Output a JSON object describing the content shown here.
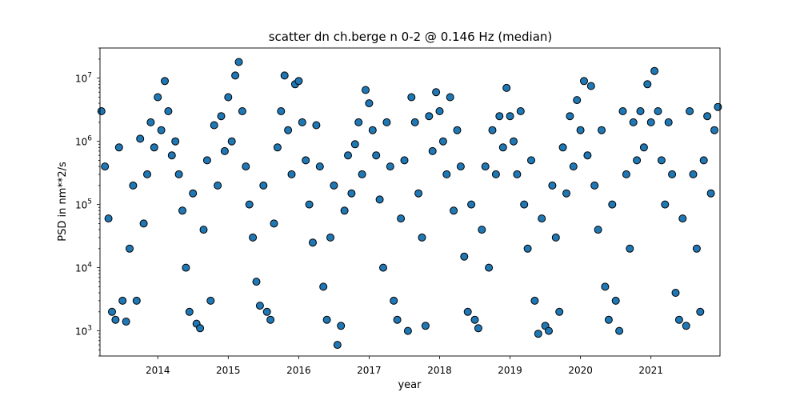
{
  "chart_data": {
    "type": "scatter",
    "title": "scatter dn ch.berge n 0-2 @ 0.146 Hz (median)",
    "xlabel": "year",
    "ylabel": "PSD in nm**2/s",
    "x_scale": "time",
    "y_scale": "log",
    "xlim": [
      2013.18,
      2021.98
    ],
    "ylim": [
      400,
      30000000
    ],
    "x_ticks": [
      {
        "value": 2014,
        "label": "2014"
      },
      {
        "value": 2015,
        "label": "2015"
      },
      {
        "value": 2016,
        "label": "2016"
      },
      {
        "value": 2017,
        "label": "2017"
      },
      {
        "value": 2018,
        "label": "2018"
      },
      {
        "value": 2019,
        "label": "2019"
      },
      {
        "value": 2020,
        "label": "2020"
      },
      {
        "value": 2021,
        "label": "2021"
      }
    ],
    "y_ticks": [
      {
        "value": 1000,
        "base": "10",
        "exp": "3"
      },
      {
        "value": 10000,
        "base": "10",
        "exp": "4"
      },
      {
        "value": 100000,
        "base": "10",
        "exp": "5"
      },
      {
        "value": 1000000,
        "base": "10",
        "exp": "6"
      },
      {
        "value": 10000000,
        "base": "10",
        "exp": "7"
      }
    ],
    "marker_color": "#1f77b4",
    "marker_edge_color": "#000000",
    "grid": false,
    "series": [
      {
        "points": [
          [
            2013.2,
            3000000
          ],
          [
            2013.25,
            400000
          ],
          [
            2013.3,
            60000
          ],
          [
            2013.35,
            2000
          ],
          [
            2013.4,
            1500
          ],
          [
            2013.45,
            800000
          ],
          [
            2013.5,
            3000
          ],
          [
            2013.55,
            1400
          ],
          [
            2013.6,
            20000
          ],
          [
            2013.65,
            200000
          ],
          [
            2013.7,
            3000
          ],
          [
            2013.75,
            1100000
          ],
          [
            2013.8,
            50000
          ],
          [
            2013.85,
            300000
          ],
          [
            2013.9,
            2000000
          ],
          [
            2013.95,
            800000
          ],
          [
            2014.0,
            5000000
          ],
          [
            2014.05,
            1500000
          ],
          [
            2014.1,
            9000000
          ],
          [
            2014.15,
            3000000
          ],
          [
            2014.2,
            600000
          ],
          [
            2014.25,
            1000000
          ],
          [
            2014.3,
            300000
          ],
          [
            2014.35,
            80000
          ],
          [
            2014.4,
            10000
          ],
          [
            2014.45,
            2000
          ],
          [
            2014.5,
            150000
          ],
          [
            2014.55,
            1300
          ],
          [
            2014.6,
            1100
          ],
          [
            2014.65,
            40000
          ],
          [
            2014.7,
            500000
          ],
          [
            2014.75,
            3000
          ],
          [
            2014.8,
            1800000
          ],
          [
            2014.85,
            200000
          ],
          [
            2014.9,
            2500000
          ],
          [
            2014.95,
            700000
          ],
          [
            2015.0,
            5000000
          ],
          [
            2015.05,
            1000000
          ],
          [
            2015.1,
            11000000
          ],
          [
            2015.15,
            18000000
          ],
          [
            2015.2,
            3000000
          ],
          [
            2015.25,
            400000
          ],
          [
            2015.3,
            100000
          ],
          [
            2015.35,
            30000
          ],
          [
            2015.4,
            6000
          ],
          [
            2015.45,
            2500
          ],
          [
            2015.5,
            200000
          ],
          [
            2015.55,
            2000
          ],
          [
            2015.6,
            1500
          ],
          [
            2015.65,
            50000
          ],
          [
            2015.7,
            800000
          ],
          [
            2015.75,
            3000000
          ],
          [
            2015.8,
            11000000
          ],
          [
            2015.85,
            1500000
          ],
          [
            2015.9,
            300000
          ],
          [
            2015.95,
            8000000
          ],
          [
            2016.0,
            9000000
          ],
          [
            2016.05,
            2000000
          ],
          [
            2016.1,
            500000
          ],
          [
            2016.15,
            100000
          ],
          [
            2016.2,
            25000
          ],
          [
            2016.25,
            1800000
          ],
          [
            2016.3,
            400000
          ],
          [
            2016.35,
            5000
          ],
          [
            2016.4,
            1500
          ],
          [
            2016.45,
            30000
          ],
          [
            2016.5,
            200000
          ],
          [
            2016.55,
            600
          ],
          [
            2016.6,
            1200
          ],
          [
            2016.65,
            80000
          ],
          [
            2016.7,
            600000
          ],
          [
            2016.75,
            150000
          ],
          [
            2016.8,
            900000
          ],
          [
            2016.85,
            2000000
          ],
          [
            2016.9,
            300000
          ],
          [
            2016.95,
            6500000
          ],
          [
            2017.0,
            4000000
          ],
          [
            2017.05,
            1500000
          ],
          [
            2017.1,
            600000
          ],
          [
            2017.15,
            120000
          ],
          [
            2017.2,
            10000
          ],
          [
            2017.25,
            2000000
          ],
          [
            2017.3,
            400000
          ],
          [
            2017.35,
            3000
          ],
          [
            2017.4,
            1500
          ],
          [
            2017.45,
            60000
          ],
          [
            2017.5,
            500000
          ],
          [
            2017.55,
            1000
          ],
          [
            2017.6,
            5000000
          ],
          [
            2017.65,
            2000000
          ],
          [
            2017.7,
            150000
          ],
          [
            2017.75,
            30000
          ],
          [
            2017.8,
            1200
          ],
          [
            2017.85,
            2500000
          ],
          [
            2017.9,
            700000
          ],
          [
            2017.95,
            6000000
          ],
          [
            2018.0,
            3000000
          ],
          [
            2018.05,
            1000000
          ],
          [
            2018.1,
            300000
          ],
          [
            2018.15,
            5000000
          ],
          [
            2018.2,
            80000
          ],
          [
            2018.25,
            1500000
          ],
          [
            2018.3,
            400000
          ],
          [
            2018.35,
            15000
          ],
          [
            2018.4,
            2000
          ],
          [
            2018.45,
            100000
          ],
          [
            2018.5,
            1500
          ],
          [
            2018.55,
            1100
          ],
          [
            2018.6,
            40000
          ],
          [
            2018.65,
            400000
          ],
          [
            2018.7,
            10000
          ],
          [
            2018.75,
            1500000
          ],
          [
            2018.8,
            300000
          ],
          [
            2018.85,
            2500000
          ],
          [
            2018.9,
            800000
          ],
          [
            2018.95,
            7000000
          ],
          [
            2019.0,
            2500000
          ],
          [
            2019.05,
            1000000
          ],
          [
            2019.1,
            300000
          ],
          [
            2019.15,
            3000000
          ],
          [
            2019.2,
            100000
          ],
          [
            2019.25,
            20000
          ],
          [
            2019.3,
            500000
          ],
          [
            2019.35,
            3000
          ],
          [
            2019.4,
            900
          ],
          [
            2019.45,
            60000
          ],
          [
            2019.5,
            1200
          ],
          [
            2019.55,
            1000
          ],
          [
            2019.6,
            200000
          ],
          [
            2019.65,
            30000
          ],
          [
            2019.7,
            2000
          ],
          [
            2019.75,
            800000
          ],
          [
            2019.8,
            150000
          ],
          [
            2019.85,
            2500000
          ],
          [
            2019.9,
            400000
          ],
          [
            2019.95,
            4500000
          ],
          [
            2020.0,
            1500000
          ],
          [
            2020.05,
            9000000
          ],
          [
            2020.1,
            600000
          ],
          [
            2020.15,
            7500000
          ],
          [
            2020.2,
            200000
          ],
          [
            2020.25,
            40000
          ],
          [
            2020.3,
            1500000
          ],
          [
            2020.35,
            5000
          ],
          [
            2020.4,
            1500
          ],
          [
            2020.45,
            100000
          ],
          [
            2020.5,
            3000
          ],
          [
            2020.55,
            1000
          ],
          [
            2020.6,
            3000000
          ],
          [
            2020.65,
            300000
          ],
          [
            2020.7,
            20000
          ],
          [
            2020.75,
            2000000
          ],
          [
            2020.8,
            500000
          ],
          [
            2020.85,
            3000000
          ],
          [
            2020.9,
            800000
          ],
          [
            2020.95,
            8000000
          ],
          [
            2021.0,
            2000000
          ],
          [
            2021.05,
            13000000
          ],
          [
            2021.1,
            3000000
          ],
          [
            2021.15,
            500000
          ],
          [
            2021.2,
            100000
          ],
          [
            2021.25,
            2000000
          ],
          [
            2021.3,
            300000
          ],
          [
            2021.35,
            4000
          ],
          [
            2021.4,
            1500
          ],
          [
            2021.45,
            60000
          ],
          [
            2021.5,
            1200
          ],
          [
            2021.55,
            3000000
          ],
          [
            2021.6,
            300000
          ],
          [
            2021.65,
            20000
          ],
          [
            2021.7,
            2000
          ],
          [
            2021.75,
            500000
          ],
          [
            2021.8,
            2500000
          ],
          [
            2021.85,
            150000
          ],
          [
            2021.9,
            1500000
          ],
          [
            2021.95,
            3500000
          ]
        ]
      }
    ]
  }
}
